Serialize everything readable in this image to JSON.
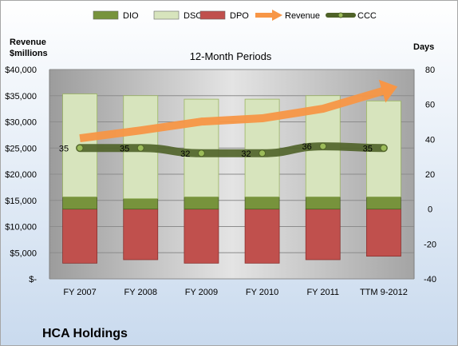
{
  "chart_data": {
    "type": "bar",
    "title": "12-Month Periods",
    "company": "HCA Holdings",
    "left_axis_label": [
      "Revenue",
      "$millions"
    ],
    "right_axis_label": "Days",
    "categories": [
      "FY 2007",
      "FY 2008",
      "FY 2009",
      "FY 2010",
      "FY 2011",
      "TTM 9-2012"
    ],
    "left_axis": {
      "min": 0,
      "max": 40000,
      "step": 5000,
      "tick_labels": [
        "$-",
        "$5,000",
        "$10,000",
        "$15,000",
        "$20,000",
        "$25,000",
        "$30,000",
        "$35,000",
        "$40,000"
      ]
    },
    "right_axis": {
      "min": -40,
      "max": 80,
      "step": 20,
      "tick_labels": [
        "-40",
        "-20",
        "0",
        "20",
        "40",
        "60",
        "80"
      ]
    },
    "series": [
      {
        "name": "DIO",
        "kind": "stacked-bar",
        "axis": "right",
        "color": "#77933c",
        "values": [
          7,
          6,
          7,
          7,
          7,
          7
        ]
      },
      {
        "name": "DSO",
        "kind": "stacked-bar",
        "axis": "right",
        "color": "#d7e4bd",
        "values": [
          59,
          59,
          56,
          56,
          58,
          55
        ]
      },
      {
        "name": "DPO",
        "kind": "negative-bar",
        "axis": "right",
        "color": "#c0504d",
        "values": [
          -31,
          -29,
          -31,
          -31,
          -29,
          -27
        ]
      },
      {
        "name": "Revenue",
        "kind": "arrow-line",
        "axis": "left",
        "color": "#f79646",
        "values": [
          26858,
          28374,
          30052,
          30683,
          32506,
          35950
        ]
      },
      {
        "name": "CCC",
        "kind": "line",
        "axis": "right",
        "color": "#4f6228",
        "values": [
          35,
          35,
          32,
          32,
          36,
          35
        ],
        "labels": [
          "35",
          "35",
          "32",
          "32",
          "36",
          "35"
        ]
      }
    ],
    "grid": true,
    "legend_position": "top"
  }
}
